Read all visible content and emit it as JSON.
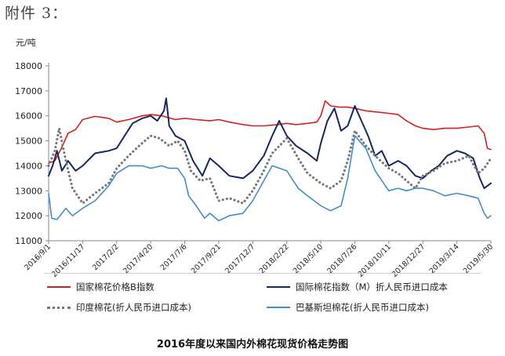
{
  "header": {
    "text": "附件 3："
  },
  "unit_label": "元/吨",
  "caption": "2016年度以来国内外棉花现货价格走势图",
  "colors": {
    "red": "#d62020",
    "navy": "#16285c",
    "gray": "#7a7a7a",
    "blue": "#3f8ec6",
    "axis": "#8a8a8a",
    "grid": "#d9d9d9"
  },
  "chart_data": {
    "type": "line",
    "ylabel": "元/吨",
    "ylim": [
      11000,
      18000
    ],
    "yticks": [
      11000,
      12000,
      13000,
      14000,
      15000,
      16000,
      17000,
      18000
    ],
    "xlim": [
      "2016-09-01",
      "2019-05-30"
    ],
    "x_ticks": [
      "2016/9/1",
      "2016/11/17",
      "2017/2/2",
      "2017/4/20",
      "2017/7/6",
      "2017/9/21",
      "2017/12/7",
      "2018/2/22",
      "2018/5/10",
      "2018/7/26",
      "2018/10/11",
      "2018/12/27",
      "2019/3/14",
      "2019/5/30"
    ],
    "grid": false,
    "legend_position": "bottom",
    "series": [
      {
        "name": "国家棉花价格B指数",
        "color": "#d62020",
        "style": "solid",
        "points": [
          [
            "2016-09-01",
            14100
          ],
          [
            "2016-09-15",
            14200
          ],
          [
            "2016-09-30",
            14700
          ],
          [
            "2016-10-15",
            15300
          ],
          [
            "2016-11-01",
            15450
          ],
          [
            "2016-11-17",
            15850
          ],
          [
            "2016-12-15",
            15980
          ],
          [
            "2017-01-15",
            15900
          ],
          [
            "2017-02-02",
            15750
          ],
          [
            "2017-03-01",
            15850
          ],
          [
            "2017-04-01",
            16000
          ],
          [
            "2017-04-20",
            16050
          ],
          [
            "2017-05-15",
            16000
          ],
          [
            "2017-06-15",
            15850
          ],
          [
            "2017-07-06",
            15900
          ],
          [
            "2017-08-01",
            15850
          ],
          [
            "2017-09-01",
            15800
          ],
          [
            "2017-09-21",
            15850
          ],
          [
            "2017-10-15",
            15750
          ],
          [
            "2017-11-15",
            15650
          ],
          [
            "2017-12-07",
            15600
          ],
          [
            "2018-01-01",
            15600
          ],
          [
            "2018-02-01",
            15650
          ],
          [
            "2018-02-22",
            15700
          ],
          [
            "2018-03-15",
            15650
          ],
          [
            "2018-04-10",
            15700
          ],
          [
            "2018-05-01",
            15750
          ],
          [
            "2018-05-10",
            16000
          ],
          [
            "2018-05-20",
            16600
          ],
          [
            "2018-06-01",
            16400
          ],
          [
            "2018-06-20",
            16350
          ],
          [
            "2018-07-10",
            16350
          ],
          [
            "2018-07-26",
            16300
          ],
          [
            "2018-08-20",
            16200
          ],
          [
            "2018-09-15",
            16150
          ],
          [
            "2018-10-11",
            16100
          ],
          [
            "2018-11-01",
            16050
          ],
          [
            "2018-11-20",
            15800
          ],
          [
            "2018-12-10",
            15600
          ],
          [
            "2018-12-27",
            15500
          ],
          [
            "2019-01-20",
            15450
          ],
          [
            "2019-02-15",
            15500
          ],
          [
            "2019-03-14",
            15500
          ],
          [
            "2019-04-10",
            15550
          ],
          [
            "2019-05-01",
            15600
          ],
          [
            "2019-05-15",
            15300
          ],
          [
            "2019-05-22",
            14700
          ],
          [
            "2019-05-30",
            14650
          ]
        ]
      },
      {
        "name": "国际棉花指数（M）折人民币进口成本",
        "color": "#16285c",
        "style": "solid",
        "points": [
          [
            "2016-09-01",
            13600
          ],
          [
            "2016-09-10",
            14000
          ],
          [
            "2016-09-20",
            14600
          ],
          [
            "2016-10-01",
            13800
          ],
          [
            "2016-10-15",
            14200
          ],
          [
            "2016-11-01",
            13800
          ],
          [
            "2016-11-17",
            14000
          ],
          [
            "2016-12-15",
            14500
          ],
          [
            "2017-01-15",
            14600
          ],
          [
            "2017-02-02",
            14700
          ],
          [
            "2017-02-20",
            15200
          ],
          [
            "2017-03-10",
            15700
          ],
          [
            "2017-04-01",
            15900
          ],
          [
            "2017-04-20",
            16000
          ],
          [
            "2017-05-05",
            15800
          ],
          [
            "2017-05-20",
            16200
          ],
          [
            "2017-05-25",
            16700
          ],
          [
            "2017-06-01",
            15600
          ],
          [
            "2017-06-15",
            15200
          ],
          [
            "2017-07-06",
            15000
          ],
          [
            "2017-07-25",
            14200
          ],
          [
            "2017-08-15",
            13600
          ],
          [
            "2017-09-01",
            14300
          ],
          [
            "2017-09-21",
            14000
          ],
          [
            "2017-10-15",
            13600
          ],
          [
            "2017-11-15",
            13500
          ],
          [
            "2017-12-07",
            13800
          ],
          [
            "2018-01-01",
            14400
          ],
          [
            "2018-01-20",
            15200
          ],
          [
            "2018-02-05",
            15800
          ],
          [
            "2018-02-22",
            15200
          ],
          [
            "2018-03-15",
            14800
          ],
          [
            "2018-04-10",
            14500
          ],
          [
            "2018-05-01",
            14200
          ],
          [
            "2018-05-10",
            14900
          ],
          [
            "2018-05-25",
            15800
          ],
          [
            "2018-06-10",
            16300
          ],
          [
            "2018-06-25",
            15400
          ],
          [
            "2018-07-10",
            15600
          ],
          [
            "2018-07-26",
            16400
          ],
          [
            "2018-08-10",
            15800
          ],
          [
            "2018-08-25",
            15200
          ],
          [
            "2018-09-10",
            14400
          ],
          [
            "2018-09-25",
            14600
          ],
          [
            "2018-10-11",
            14000
          ],
          [
            "2018-11-01",
            14200
          ],
          [
            "2018-11-20",
            14000
          ],
          [
            "2018-12-10",
            13600
          ],
          [
            "2018-12-27",
            13500
          ],
          [
            "2019-01-15",
            13800
          ],
          [
            "2019-02-01",
            14000
          ],
          [
            "2019-02-20",
            14400
          ],
          [
            "2019-03-14",
            14600
          ],
          [
            "2019-04-01",
            14500
          ],
          [
            "2019-04-20",
            14300
          ],
          [
            "2019-05-05",
            13500
          ],
          [
            "2019-05-15",
            13100
          ],
          [
            "2019-05-30",
            13300
          ]
        ]
      },
      {
        "name": "印度棉花(折人民币进口成本)",
        "color": "#7a7a7a",
        "style": "dotted",
        "points": [
          [
            "2016-09-01",
            14000
          ],
          [
            "2016-09-15",
            14600
          ],
          [
            "2016-09-25",
            15500
          ],
          [
            "2016-10-10",
            14200
          ],
          [
            "2016-10-25",
            13100
          ],
          [
            "2016-11-17",
            12500
          ],
          [
            "2016-12-15",
            12900
          ],
          [
            "2017-01-15",
            13300
          ],
          [
            "2017-02-02",
            13900
          ],
          [
            "2017-03-01",
            14400
          ],
          [
            "2017-03-25",
            14800
          ],
          [
            "2017-04-20",
            15200
          ],
          [
            "2017-05-10",
            15100
          ],
          [
            "2017-06-01",
            14800
          ],
          [
            "2017-06-20",
            15000
          ],
          [
            "2017-07-06",
            14600
          ],
          [
            "2017-07-20",
            13800
          ],
          [
            "2017-08-10",
            13400
          ],
          [
            "2017-09-01",
            13500
          ],
          [
            "2017-09-21",
            12600
          ],
          [
            "2017-10-15",
            12700
          ],
          [
            "2017-11-15",
            12500
          ],
          [
            "2017-12-07",
            13000
          ],
          [
            "2018-01-01",
            13800
          ],
          [
            "2018-01-20",
            14500
          ],
          [
            "2018-02-22",
            15100
          ],
          [
            "2018-03-20",
            14300
          ],
          [
            "2018-04-10",
            13700
          ],
          [
            "2018-05-10",
            13300
          ],
          [
            "2018-06-01",
            13100
          ],
          [
            "2018-06-25",
            13400
          ],
          [
            "2018-07-10",
            14200
          ],
          [
            "2018-07-26",
            15400
          ],
          [
            "2018-08-20",
            14800
          ],
          [
            "2018-09-10",
            14400
          ],
          [
            "2018-10-11",
            13900
          ],
          [
            "2018-11-01",
            13700
          ],
          [
            "2018-11-20",
            13400
          ],
          [
            "2018-12-10",
            13100
          ],
          [
            "2018-12-27",
            13600
          ],
          [
            "2019-01-20",
            13800
          ],
          [
            "2019-02-15",
            14100
          ],
          [
            "2019-03-14",
            14200
          ],
          [
            "2019-04-10",
            14400
          ],
          [
            "2019-05-01",
            13700
          ],
          [
            "2019-05-15",
            13900
          ],
          [
            "2019-05-30",
            14300
          ]
        ]
      },
      {
        "name": "巴基斯坦棉花(折人民币进口成本)",
        "color": "#3f8ec6",
        "style": "solid",
        "points": [
          [
            "2016-09-01",
            12900
          ],
          [
            "2016-09-08",
            11900
          ],
          [
            "2016-09-20",
            11850
          ],
          [
            "2016-10-10",
            12300
          ],
          [
            "2016-10-25",
            12000
          ],
          [
            "2016-11-17",
            12300
          ],
          [
            "2016-12-15",
            12600
          ],
          [
            "2017-01-15",
            13200
          ],
          [
            "2017-02-02",
            13700
          ],
          [
            "2017-03-01",
            14000
          ],
          [
            "2017-04-01",
            14000
          ],
          [
            "2017-04-20",
            13900
          ],
          [
            "2017-05-15",
            14000
          ],
          [
            "2017-06-01",
            13900
          ],
          [
            "2017-06-20",
            13900
          ],
          [
            "2017-07-06",
            13500
          ],
          [
            "2017-07-15",
            12800
          ],
          [
            "2017-08-01",
            12400
          ],
          [
            "2017-08-20",
            11900
          ],
          [
            "2017-09-01",
            12100
          ],
          [
            "2017-09-21",
            11800
          ],
          [
            "2017-10-15",
            12000
          ],
          [
            "2017-11-15",
            12100
          ],
          [
            "2017-12-07",
            12600
          ],
          [
            "2018-01-01",
            13400
          ],
          [
            "2018-01-20",
            14000
          ],
          [
            "2018-02-22",
            13800
          ],
          [
            "2018-03-20",
            13100
          ],
          [
            "2018-04-10",
            12800
          ],
          [
            "2018-05-10",
            12400
          ],
          [
            "2018-06-01",
            12200
          ],
          [
            "2018-06-25",
            12400
          ],
          [
            "2018-07-10",
            13500
          ],
          [
            "2018-07-26",
            15200
          ],
          [
            "2018-08-20",
            14700
          ],
          [
            "2018-09-10",
            13800
          ],
          [
            "2018-10-11",
            13000
          ],
          [
            "2018-11-01",
            13100
          ],
          [
            "2018-11-20",
            13000
          ],
          [
            "2018-12-10",
            13100
          ],
          [
            "2018-12-27",
            13100
          ],
          [
            "2019-01-20",
            13000
          ],
          [
            "2019-02-15",
            12800
          ],
          [
            "2019-03-14",
            12900
          ],
          [
            "2019-04-10",
            12800
          ],
          [
            "2019-05-01",
            12700
          ],
          [
            "2019-05-15",
            12100
          ],
          [
            "2019-05-22",
            11900
          ],
          [
            "2019-05-30",
            12000
          ]
        ]
      }
    ]
  }
}
